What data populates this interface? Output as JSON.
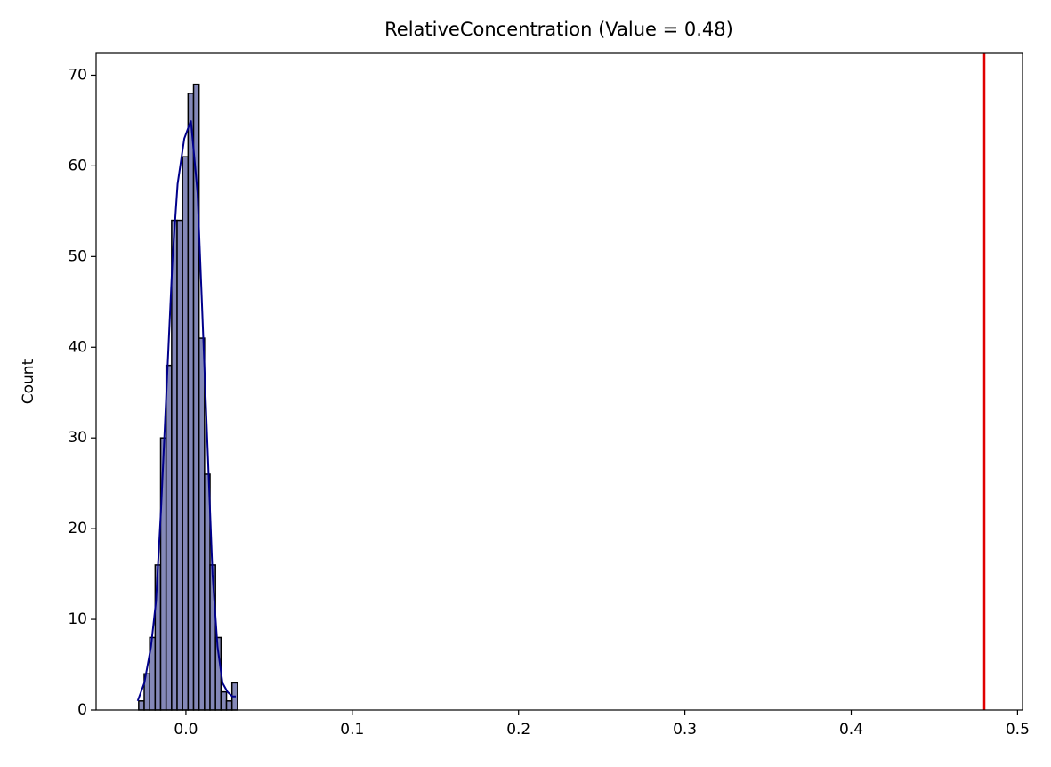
{
  "chart_data": {
    "type": "histogram",
    "title": "RelativeConcentration (Value = 0.48)",
    "y_label": "Count",
    "bins": [
      -0.0284,
      -0.0251,
      -0.0218,
      -0.0185,
      -0.0152,
      -0.0119,
      -0.0086,
      -0.0053,
      -0.002,
      0.0013,
      0.0046,
      0.0079,
      0.0112,
      0.0145,
      0.0178,
      0.0211,
      0.0244,
      0.0277,
      0.031
    ],
    "values": [
      1,
      4,
      8,
      16,
      30,
      38,
      54,
      54,
      61,
      68,
      69,
      41,
      26,
      16,
      8,
      2,
      1,
      3
    ],
    "color": "#8488b8",
    "kde": {
      "color": "#00008b",
      "x": [
        -0.029,
        -0.025,
        -0.021,
        -0.018,
        -0.015,
        -0.011,
        -0.008,
        -0.005,
        -0.001,
        0.003,
        0.007,
        0.0096,
        0.0128,
        0.016,
        0.019,
        0.022,
        0.025,
        0.028,
        0.03
      ],
      "values": [
        1,
        3,
        7,
        12,
        22,
        38,
        50,
        58,
        63,
        65,
        57,
        45,
        30,
        15,
        7,
        3,
        2,
        1.5,
        1.5
      ]
    },
    "reference_line": {
      "x": 0.48,
      "color": "#e00000"
    },
    "xlim": [
      -0.054,
      0.503
    ],
    "ylim": [
      0,
      72.4
    ],
    "xticks": [
      {
        "value": 0,
        "label": "0.0"
      },
      0.1,
      0.2,
      0.3,
      0.4,
      0.5
    ],
    "yticks": [
      0,
      10,
      20,
      30,
      40,
      50,
      60,
      70
    ]
  }
}
